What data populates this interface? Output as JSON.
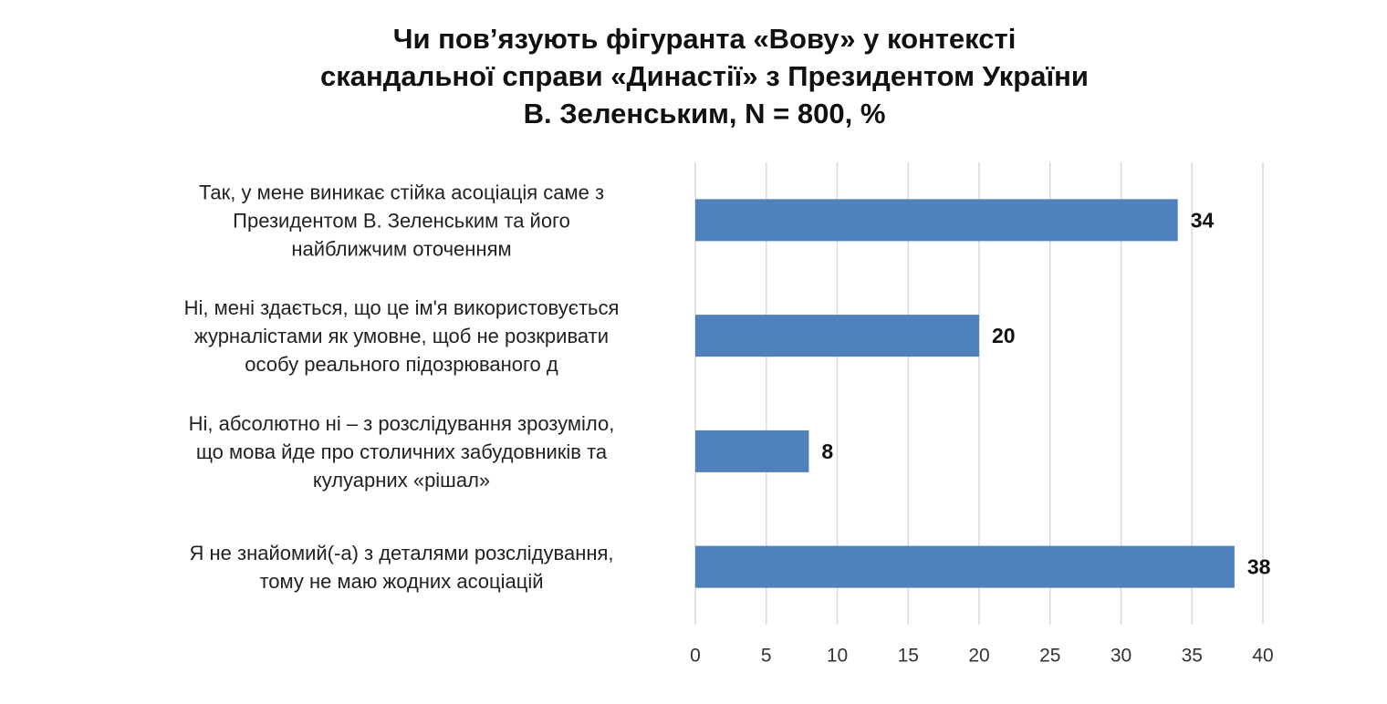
{
  "chart_data": {
    "type": "bar",
    "orientation": "horizontal",
    "title": "Чи пов’язують фігуранта «Вову» у контексті\nскандальної справи «Династії» з Президентом України\nВ. Зеленським, N = 800, %",
    "categories": [
      "Так, у мене виникає стійка асоціація саме з\nПрезидентом В. Зеленським та його\nнайближчим оточенням",
      "Ні, мені здається, що це ім'я використовується\nжурналістами як умовне, щоб не розкривати\nособу реального підозрюваного д",
      "Ні, абсолютно ні – з розслідування зрозуміло,\nщо мова йде про столичних забудовників та\nкулуарних «рішал»",
      "Я не знайомий(-а) з деталями розслідування,\nтому не маю жодних асоціацій"
    ],
    "values": [
      34,
      20,
      8,
      38
    ],
    "color": "#4f81bd",
    "xlim": [
      0,
      40
    ],
    "xticks": [
      0,
      5,
      10,
      15,
      20,
      25,
      30,
      35,
      40
    ],
    "grid": true
  }
}
